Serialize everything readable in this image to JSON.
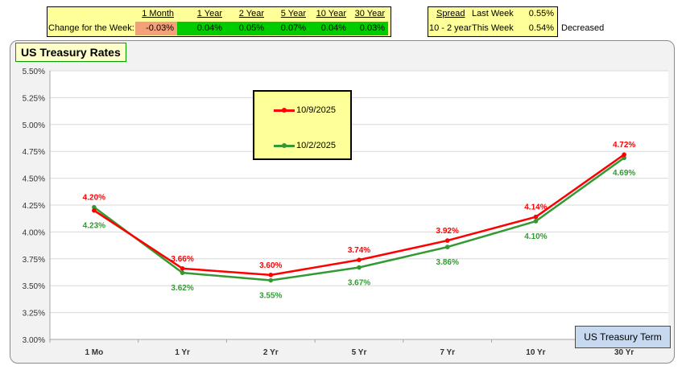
{
  "summary": {
    "change_label": "Change for the Week:",
    "headers": [
      "1 Month",
      "1 Year",
      "2 Year",
      "5 Year",
      "10 Year",
      "30 Year"
    ],
    "changes": [
      "-0.03%",
      "0.04%",
      "0.05%",
      "0.07%",
      "0.04%",
      "0.03%"
    ],
    "colors": {
      "negative": "#f4a07a",
      "positive": "#00cc00",
      "background": "#ffff99"
    }
  },
  "spread": {
    "header": "Spread",
    "label": "10 - 2 year",
    "last_week_label": "Last Week",
    "last_week_value": "0.55%",
    "this_week_label": "This Week",
    "this_week_value": "0.54%",
    "status": "Decreased"
  },
  "chart_data": {
    "type": "line",
    "title": "US Treasury Rates",
    "xlabel": "US Treasury Term",
    "ylabel": "",
    "categories": [
      "1 Mo",
      "1 Yr",
      "2 Yr",
      "5 Yr",
      "7 Yr",
      "10 Yr",
      "30 Yr"
    ],
    "ylim": [
      3.0,
      5.5
    ],
    "yticks": [
      "3.00%",
      "3.25%",
      "3.50%",
      "3.75%",
      "4.00%",
      "4.25%",
      "4.50%",
      "4.75%",
      "5.00%",
      "5.25%",
      "5.50%"
    ],
    "series": [
      {
        "name": "10/9/2025",
        "color": "#ff0000",
        "values": [
          4.2,
          3.66,
          3.6,
          3.74,
          3.92,
          4.14,
          4.72
        ],
        "labels": [
          "4.20%",
          "3.66%",
          "3.60%",
          "3.74%",
          "3.92%",
          "4.14%",
          "4.72%"
        ]
      },
      {
        "name": "10/2/2025",
        "color": "#339933",
        "values": [
          4.23,
          3.62,
          3.55,
          3.67,
          3.86,
          4.1,
          4.69
        ],
        "labels": [
          "4.23%",
          "3.62%",
          "3.55%",
          "3.67%",
          "3.86%",
          "4.10%",
          "4.69%"
        ]
      }
    ],
    "grid": true,
    "legend": "inside-top-center"
  }
}
